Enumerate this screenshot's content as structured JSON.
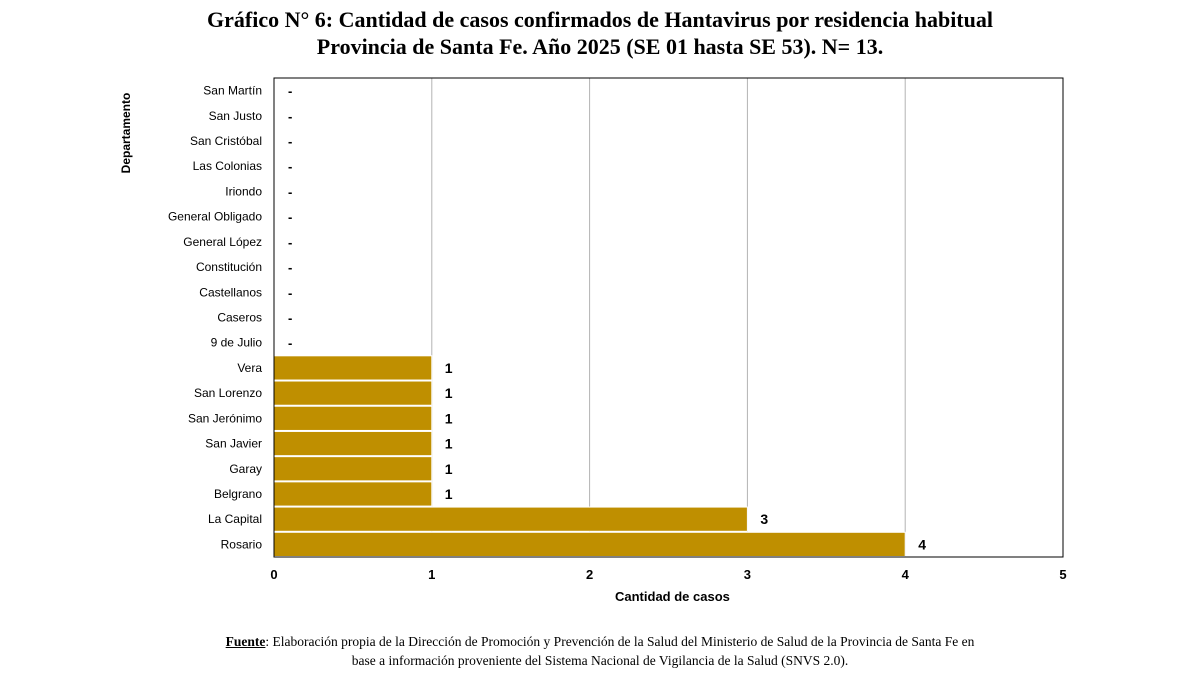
{
  "title": {
    "line1": "Gráfico N° 6: Cantidad de casos confirmados de Hantavirus por residencia habitual",
    "line2": "Provincia de Santa Fe. Año 2025 (SE 01 hasta SE 53). N= 13."
  },
  "chart_data": {
    "type": "bar",
    "orientation": "horizontal",
    "categories": [
      "San Martín",
      "San Justo",
      "San Cristóbal",
      "Las Colonias",
      "Iriondo",
      "General Obligado",
      "General López",
      "Constitución",
      "Castellanos",
      "Caseros",
      "9 de Julio",
      "Vera",
      "San Lorenzo",
      "San Jerónimo",
      "San Javier",
      "Garay",
      "Belgrano",
      "La Capital",
      "Rosario"
    ],
    "values": [
      0,
      0,
      0,
      0,
      0,
      0,
      0,
      0,
      0,
      0,
      0,
      1,
      1,
      1,
      1,
      1,
      1,
      3,
      4
    ],
    "data_labels": [
      "-",
      "-",
      "-",
      "-",
      "-",
      "-",
      "-",
      "-",
      "-",
      "-",
      "-",
      "1",
      "1",
      "1",
      "1",
      "1",
      "1",
      "3",
      "4"
    ],
    "xlabel": "Cantidad de casos",
    "ylabel": "Departamento",
    "xlim": [
      0,
      5
    ],
    "xticks": [
      0,
      1,
      2,
      3,
      4,
      5
    ],
    "grid": "vertical",
    "bar_color": "#BF8F00",
    "legend": "none"
  },
  "source": {
    "label": "Fuente",
    "text": ": Elaboración propia de la Dirección de Promoción y Prevención de la Salud del Ministerio de Salud de la Provincia de Santa Fe en",
    "text2": "base a información proveniente del Sistema Nacional de Vigilancia de la Salud (SNVS 2.0)."
  }
}
